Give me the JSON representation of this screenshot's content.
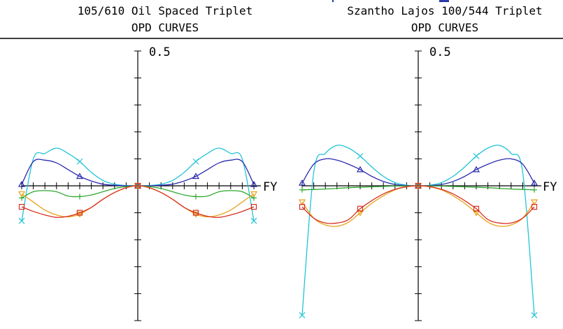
{
  "colors": {
    "background": "#ffffff",
    "axis": "#000000",
    "cyan": "#22c4d8",
    "blue": "#2a2ab0",
    "green": "#2ea82e",
    "orange": "#e8a018",
    "red": "#d83020"
  },
  "chart_data": [
    {
      "type": "line",
      "title": "105/610 Oil Spaced Triplet",
      "subtitle": "OPD CURVES",
      "xlabel": "FY",
      "ylabel": "",
      "ytick_label": "0.5",
      "xlim": [
        -1,
        1
      ],
      "ylim": [
        -0.5,
        0.5
      ],
      "grid": false,
      "series": [
        {
          "color": "cyan",
          "marker": "x",
          "x": [
            -1,
            -0.9,
            -0.8,
            -0.7,
            -0.6,
            -0.5,
            -0.4,
            -0.3,
            -0.2,
            -0.1,
            0,
            0.1,
            0.2,
            0.3,
            0.4,
            0.5,
            0.6,
            0.7,
            0.8,
            0.9,
            1
          ],
          "y": [
            -0.13,
            0.1,
            0.12,
            0.14,
            0.12,
            0.09,
            0.05,
            0.02,
            0.006,
            0.001,
            0,
            0.001,
            0.006,
            0.02,
            0.05,
            0.09,
            0.12,
            0.14,
            0.12,
            0.1,
            -0.13
          ]
        },
        {
          "color": "blue",
          "marker": "triangle",
          "x": [
            -1,
            -0.9,
            -0.8,
            -0.7,
            -0.6,
            -0.5,
            -0.4,
            -0.3,
            -0.2,
            -0.1,
            0,
            0.1,
            0.2,
            0.3,
            0.4,
            0.5,
            0.6,
            0.7,
            0.8,
            0.9,
            1
          ],
          "y": [
            0.005,
            0.09,
            0.095,
            0.085,
            0.06,
            0.035,
            0.018,
            0.006,
            0.002,
            0,
            0,
            0,
            0.002,
            0.006,
            0.018,
            0.035,
            0.06,
            0.085,
            0.095,
            0.09,
            0.005
          ]
        },
        {
          "color": "green",
          "marker": "plus",
          "x": [
            -1,
            -0.9,
            -0.8,
            -0.7,
            -0.6,
            -0.5,
            -0.4,
            -0.3,
            -0.2,
            -0.1,
            0,
            0.1,
            0.2,
            0.3,
            0.4,
            0.5,
            0.6,
            0.7,
            0.8,
            0.9,
            1
          ],
          "y": [
            -0.045,
            -0.022,
            -0.018,
            -0.022,
            -0.038,
            -0.04,
            -0.034,
            -0.022,
            -0.01,
            -0.003,
            0,
            -0.003,
            -0.01,
            -0.022,
            -0.034,
            -0.04,
            -0.038,
            -0.022,
            -0.018,
            -0.022,
            -0.045
          ]
        },
        {
          "color": "orange",
          "marker": "triangle-down",
          "x": [
            -1,
            -0.9,
            -0.8,
            -0.7,
            -0.6,
            -0.5,
            -0.4,
            -0.3,
            -0.2,
            -0.1,
            0,
            0.1,
            0.2,
            0.3,
            0.4,
            0.5,
            0.6,
            0.7,
            0.8,
            0.9,
            1
          ],
          "y": [
            -0.03,
            -0.06,
            -0.09,
            -0.108,
            -0.115,
            -0.105,
            -0.08,
            -0.05,
            -0.025,
            -0.007,
            0,
            -0.007,
            -0.025,
            -0.05,
            -0.08,
            -0.105,
            -0.115,
            -0.108,
            -0.09,
            -0.06,
            -0.03
          ]
        },
        {
          "color": "red",
          "marker": "square",
          "x": [
            -1,
            -0.9,
            -0.8,
            -0.7,
            -0.6,
            -0.5,
            -0.4,
            -0.3,
            -0.2,
            -0.1,
            0,
            0.1,
            0.2,
            0.3,
            0.4,
            0.5,
            0.6,
            0.7,
            0.8,
            0.9,
            1
          ],
          "y": [
            -0.078,
            -0.095,
            -0.108,
            -0.117,
            -0.113,
            -0.1,
            -0.08,
            -0.05,
            -0.025,
            -0.007,
            0,
            -0.007,
            -0.025,
            -0.05,
            -0.08,
            -0.1,
            -0.113,
            -0.117,
            -0.108,
            -0.095,
            -0.078
          ]
        }
      ]
    },
    {
      "type": "line",
      "title": "Szantho Lajos 100/544 Triplet",
      "subtitle": "OPD CURVES",
      "xlabel": "FY",
      "ylabel": "",
      "ytick_label": "0.5",
      "xlim": [
        -1,
        1
      ],
      "ylim": [
        -0.5,
        0.5
      ],
      "grid": false,
      "series": [
        {
          "color": "cyan",
          "marker": "x",
          "x": [
            -1,
            -0.9,
            -0.8,
            -0.7,
            -0.6,
            -0.5,
            -0.4,
            -0.3,
            -0.2,
            -0.1,
            0,
            0.1,
            0.2,
            0.3,
            0.4,
            0.5,
            0.6,
            0.7,
            0.8,
            0.9,
            1
          ],
          "y": [
            -0.48,
            0.05,
            0.12,
            0.15,
            0.14,
            0.11,
            0.07,
            0.035,
            0.012,
            0.002,
            0,
            0.002,
            0.012,
            0.035,
            0.07,
            0.11,
            0.14,
            0.15,
            0.12,
            0.05,
            -0.48
          ]
        },
        {
          "color": "blue",
          "marker": "triangle",
          "x": [
            -1,
            -0.9,
            -0.8,
            -0.7,
            -0.6,
            -0.5,
            -0.4,
            -0.3,
            -0.2,
            -0.1,
            0,
            0.1,
            0.2,
            0.3,
            0.4,
            0.5,
            0.6,
            0.7,
            0.8,
            0.9,
            1
          ],
          "y": [
            0.01,
            0.08,
            0.1,
            0.095,
            0.08,
            0.06,
            0.035,
            0.016,
            0.005,
            0.001,
            0,
            0.001,
            0.005,
            0.016,
            0.035,
            0.06,
            0.08,
            0.095,
            0.1,
            0.08,
            0.01
          ]
        },
        {
          "color": "green",
          "marker": "plus",
          "x": [
            -1,
            -0.8,
            -0.6,
            -0.4,
            -0.2,
            0,
            0.2,
            0.4,
            0.6,
            0.8,
            1
          ],
          "y": [
            -0.015,
            -0.012,
            -0.007,
            -0.004,
            -0.001,
            0,
            -0.001,
            -0.004,
            -0.007,
            -0.012,
            -0.015
          ]
        },
        {
          "color": "orange",
          "marker": "triangle-down",
          "x": [
            -1,
            -0.9,
            -0.8,
            -0.7,
            -0.6,
            -0.5,
            -0.4,
            -0.3,
            -0.2,
            -0.1,
            0,
            0.1,
            0.2,
            0.3,
            0.4,
            0.5,
            0.6,
            0.7,
            0.8,
            0.9,
            1
          ],
          "y": [
            -0.06,
            -0.12,
            -0.145,
            -0.15,
            -0.135,
            -0.1,
            -0.065,
            -0.037,
            -0.015,
            -0.004,
            0,
            -0.004,
            -0.015,
            -0.037,
            -0.065,
            -0.1,
            -0.135,
            -0.15,
            -0.145,
            -0.12,
            -0.06
          ]
        },
        {
          "color": "red",
          "marker": "square",
          "x": [
            -1,
            -0.9,
            -0.8,
            -0.7,
            -0.6,
            -0.5,
            -0.4,
            -0.3,
            -0.2,
            -0.1,
            0,
            0.1,
            0.2,
            0.3,
            0.4,
            0.5,
            0.6,
            0.7,
            0.8,
            0.9,
            1
          ],
          "y": [
            -0.078,
            -0.12,
            -0.138,
            -0.138,
            -0.125,
            -0.085,
            -0.055,
            -0.03,
            -0.013,
            -0.003,
            0,
            -0.003,
            -0.013,
            -0.03,
            -0.055,
            -0.085,
            -0.125,
            -0.138,
            -0.138,
            -0.12,
            -0.078
          ]
        }
      ]
    }
  ]
}
